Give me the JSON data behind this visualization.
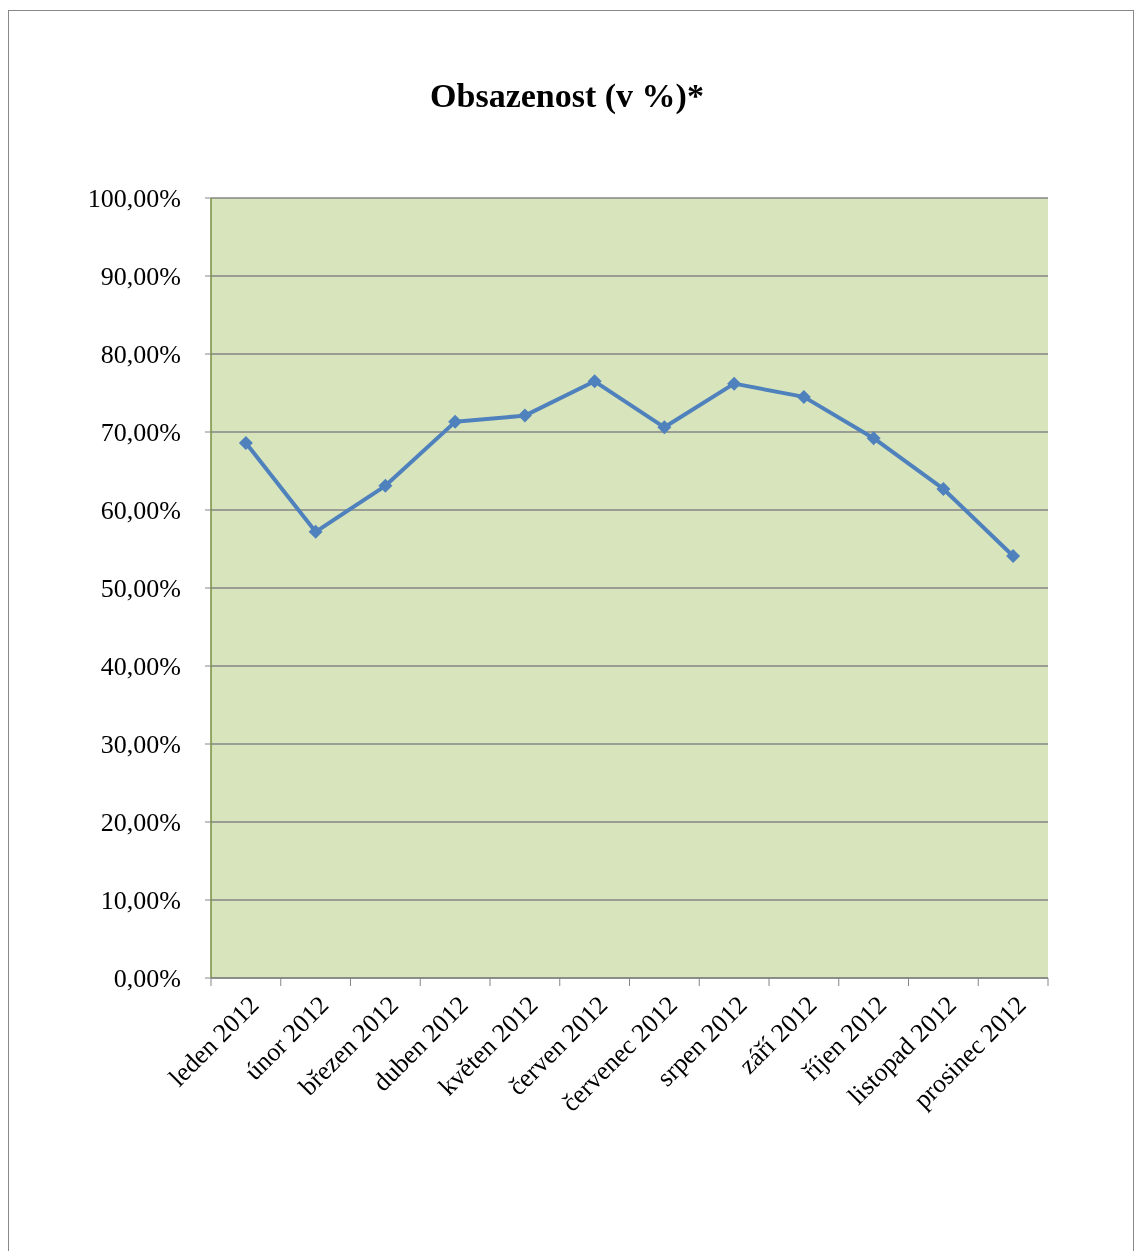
{
  "chart_data": {
    "type": "line",
    "title": "Obsazenost (v %)*",
    "categories": [
      "leden 2012",
      "únor 2012",
      "březen 2012",
      "duben 2012",
      "květen 2012",
      "červen 2012",
      "červenec 2012",
      "srpen 2012",
      "září 2012",
      "říjen 2012",
      "listopad 2012",
      "prosinec 2012"
    ],
    "series": [
      {
        "color": "#4f81bd",
        "values": [
          68.6,
          57.2,
          63.1,
          71.3,
          72.1,
          76.5,
          70.6,
          76.2,
          74.5,
          69.2,
          62.7,
          54.1
        ]
      }
    ],
    "ylim": [
      0,
      100
    ],
    "yticks": [
      {
        "value": 0,
        "label": "0,00%"
      },
      {
        "value": 10,
        "label": "10,00%"
      },
      {
        "value": 20,
        "label": "20,00%"
      },
      {
        "value": 30,
        "label": "30,00%"
      },
      {
        "value": 40,
        "label": "40,00%"
      },
      {
        "value": 50,
        "label": "50,00%"
      },
      {
        "value": 60,
        "label": "60,00%"
      },
      {
        "value": 70,
        "label": "70,00%"
      },
      {
        "value": 80,
        "label": "80,00%"
      },
      {
        "value": 90,
        "label": "90,00%"
      },
      {
        "value": 100,
        "label": "100,00%"
      }
    ],
    "grid": "y",
    "marker": "diamond",
    "line_style": "solid"
  }
}
